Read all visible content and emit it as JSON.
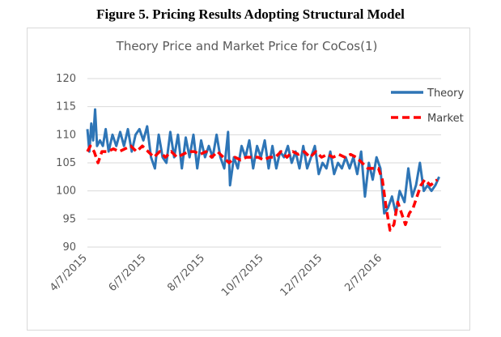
{
  "figure_title": "Figure 5. Pricing Results Adopting Structural Model",
  "chart_data": {
    "type": "line",
    "title": "Theory Price and Market Price for CoCos(1)",
    "xlabel": "",
    "ylabel": "",
    "ylim": [
      90,
      120
    ],
    "yticks": [
      90,
      95,
      100,
      105,
      110,
      115,
      120
    ],
    "x_range": [
      "2015-04-07",
      "2016-04-08"
    ],
    "x_ticks": [
      {
        "label": "4/7/2015",
        "date": "2015-04-07"
      },
      {
        "label": "6/7/2015",
        "date": "2015-06-07"
      },
      {
        "label": "8/7/2015",
        "date": "2015-08-07"
      },
      {
        "label": "10/7/2015",
        "date": "2015-10-07"
      },
      {
        "label": "12/7/2015",
        "date": "2015-12-07"
      },
      {
        "label": "2/7/2016",
        "date": "2016-02-07"
      }
    ],
    "grid": "horizontal",
    "legend_position": "top-right",
    "series": [
      {
        "name": "Theory",
        "color": "#2e75b6",
        "style": "solid",
        "points": [
          [
            "2015-04-07",
            111
          ],
          [
            "2015-04-09",
            107
          ],
          [
            "2015-04-11",
            112
          ],
          [
            "2015-04-13",
            109
          ],
          [
            "2015-04-15",
            114.5
          ],
          [
            "2015-04-17",
            108
          ],
          [
            "2015-04-20",
            109
          ],
          [
            "2015-04-23",
            108
          ],
          [
            "2015-04-26",
            111
          ],
          [
            "2015-04-29",
            107
          ],
          [
            "2015-05-03",
            110
          ],
          [
            "2015-05-07",
            108
          ],
          [
            "2015-05-11",
            110.5
          ],
          [
            "2015-05-15",
            108
          ],
          [
            "2015-05-19",
            111
          ],
          [
            "2015-05-23",
            107
          ],
          [
            "2015-05-27",
            110
          ],
          [
            "2015-05-31",
            111
          ],
          [
            "2015-06-04",
            109
          ],
          [
            "2015-06-08",
            111.5
          ],
          [
            "2015-06-12",
            106
          ],
          [
            "2015-06-16",
            104
          ],
          [
            "2015-06-20",
            110
          ],
          [
            "2015-06-24",
            106
          ],
          [
            "2015-06-28",
            105
          ],
          [
            "2015-07-02",
            110.5
          ],
          [
            "2015-07-06",
            106
          ],
          [
            "2015-07-10",
            110
          ],
          [
            "2015-07-14",
            104
          ],
          [
            "2015-07-18",
            109.5
          ],
          [
            "2015-07-22",
            106
          ],
          [
            "2015-07-26",
            110
          ],
          [
            "2015-07-30",
            104
          ],
          [
            "2015-08-03",
            109
          ],
          [
            "2015-08-07",
            106
          ],
          [
            "2015-08-11",
            108
          ],
          [
            "2015-08-15",
            106
          ],
          [
            "2015-08-19",
            110
          ],
          [
            "2015-08-23",
            106
          ],
          [
            "2015-08-27",
            104
          ],
          [
            "2015-08-31",
            110.5
          ],
          [
            "2015-09-02",
            101
          ],
          [
            "2015-09-06",
            106
          ],
          [
            "2015-09-10",
            104
          ],
          [
            "2015-09-14",
            108
          ],
          [
            "2015-09-18",
            106
          ],
          [
            "2015-09-22",
            109
          ],
          [
            "2015-09-26",
            104
          ],
          [
            "2015-09-30",
            108
          ],
          [
            "2015-10-04",
            106
          ],
          [
            "2015-10-08",
            109
          ],
          [
            "2015-10-12",
            104
          ],
          [
            "2015-10-16",
            108
          ],
          [
            "2015-10-20",
            104
          ],
          [
            "2015-10-24",
            107
          ],
          [
            "2015-10-28",
            106
          ],
          [
            "2015-11-01",
            108
          ],
          [
            "2015-11-05",
            105
          ],
          [
            "2015-11-09",
            107
          ],
          [
            "2015-11-13",
            104
          ],
          [
            "2015-11-17",
            108
          ],
          [
            "2015-11-21",
            104
          ],
          [
            "2015-11-25",
            106
          ],
          [
            "2015-11-29",
            108
          ],
          [
            "2015-12-03",
            103
          ],
          [
            "2015-12-07",
            105
          ],
          [
            "2015-12-11",
            104
          ],
          [
            "2015-12-15",
            107
          ],
          [
            "2015-12-19",
            103
          ],
          [
            "2015-12-23",
            105
          ],
          [
            "2015-12-27",
            104
          ],
          [
            "2015-12-31",
            106
          ],
          [
            "2016-01-04",
            104
          ],
          [
            "2016-01-08",
            106
          ],
          [
            "2016-01-12",
            103
          ],
          [
            "2016-01-16",
            107
          ],
          [
            "2016-01-20",
            99
          ],
          [
            "2016-01-24",
            105
          ],
          [
            "2016-01-28",
            102
          ],
          [
            "2016-02-01",
            106
          ],
          [
            "2016-02-05",
            104
          ],
          [
            "2016-02-09",
            96
          ],
          [
            "2016-02-13",
            97
          ],
          [
            "2016-02-17",
            99
          ],
          [
            "2016-02-21",
            96
          ],
          [
            "2016-02-25",
            100
          ],
          [
            "2016-03-01",
            98
          ],
          [
            "2016-03-05",
            104
          ],
          [
            "2016-03-09",
            99
          ],
          [
            "2016-03-13",
            101
          ],
          [
            "2016-03-17",
            105
          ],
          [
            "2016-03-21",
            100
          ],
          [
            "2016-03-25",
            101
          ],
          [
            "2016-03-29",
            100
          ],
          [
            "2016-04-02",
            101
          ],
          [
            "2016-04-06",
            102.5
          ]
        ]
      },
      {
        "name": "Market",
        "color": "#ff0000",
        "style": "dashed",
        "points": [
          [
            "2015-04-07",
            107
          ],
          [
            "2015-04-10",
            108
          ],
          [
            "2015-04-14",
            107
          ],
          [
            "2015-04-18",
            105
          ],
          [
            "2015-04-22",
            107
          ],
          [
            "2015-04-28",
            107
          ],
          [
            "2015-05-04",
            107.5
          ],
          [
            "2015-05-10",
            107
          ],
          [
            "2015-05-16",
            107.5
          ],
          [
            "2015-05-22",
            108
          ],
          [
            "2015-05-28",
            107
          ],
          [
            "2015-06-03",
            108
          ],
          [
            "2015-06-09",
            107
          ],
          [
            "2015-06-15",
            106
          ],
          [
            "2015-06-21",
            107
          ],
          [
            "2015-06-27",
            106
          ],
          [
            "2015-07-03",
            107
          ],
          [
            "2015-07-09",
            106
          ],
          [
            "2015-07-15",
            106.5
          ],
          [
            "2015-07-21",
            107
          ],
          [
            "2015-07-27",
            107
          ],
          [
            "2015-08-02",
            106.5
          ],
          [
            "2015-08-08",
            107
          ],
          [
            "2015-08-14",
            106
          ],
          [
            "2015-08-20",
            107
          ],
          [
            "2015-08-26",
            106
          ],
          [
            "2015-09-01",
            105
          ],
          [
            "2015-09-07",
            106
          ],
          [
            "2015-09-13",
            105.5
          ],
          [
            "2015-09-19",
            106
          ],
          [
            "2015-09-25",
            106
          ],
          [
            "2015-10-01",
            106
          ],
          [
            "2015-10-07",
            105.5
          ],
          [
            "2015-10-13",
            106
          ],
          [
            "2015-10-19",
            106
          ],
          [
            "2015-10-25",
            107
          ],
          [
            "2015-10-31",
            106
          ],
          [
            "2015-11-06",
            107
          ],
          [
            "2015-11-12",
            106.5
          ],
          [
            "2015-11-18",
            107
          ],
          [
            "2015-11-24",
            106
          ],
          [
            "2015-11-30",
            107
          ],
          [
            "2015-12-06",
            106
          ],
          [
            "2015-12-12",
            106.5
          ],
          [
            "2015-12-18",
            106
          ],
          [
            "2015-12-24",
            106.5
          ],
          [
            "2015-12-30",
            106
          ],
          [
            "2016-01-05",
            106.5
          ],
          [
            "2016-01-11",
            106
          ],
          [
            "2016-01-17",
            105
          ],
          [
            "2016-01-23",
            104
          ],
          [
            "2016-01-29",
            104
          ],
          [
            "2016-02-03",
            104
          ],
          [
            "2016-02-07",
            102
          ],
          [
            "2016-02-11",
            97
          ],
          [
            "2016-02-15",
            93
          ],
          [
            "2016-02-19",
            94
          ],
          [
            "2016-02-23",
            98
          ],
          [
            "2016-02-27",
            96
          ],
          [
            "2016-03-02",
            94
          ],
          [
            "2016-03-06",
            96
          ],
          [
            "2016-03-10",
            97
          ],
          [
            "2016-03-14",
            99
          ],
          [
            "2016-03-18",
            101
          ],
          [
            "2016-03-22",
            102
          ],
          [
            "2016-03-28",
            101
          ],
          [
            "2016-04-04",
            102
          ]
        ]
      }
    ]
  }
}
